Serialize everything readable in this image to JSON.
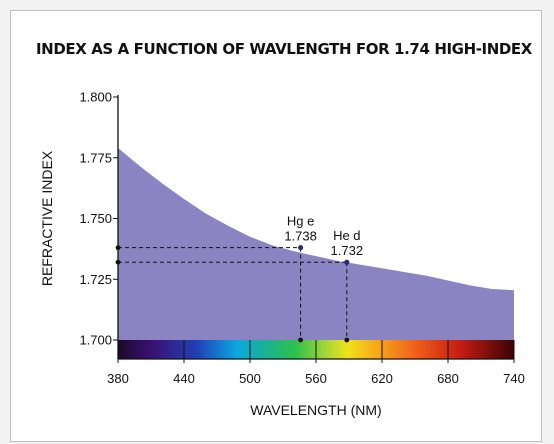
{
  "chart_data": {
    "type": "area",
    "title": "INDEX AS A FUNCTION OF WAVLENGTH FOR 1.74 HIGH-INDEX",
    "xlabel": "WAVELENGTH (NM)",
    "ylabel": "REFRACTIVE INDEX",
    "xlim": [
      380,
      740
    ],
    "ylim": [
      1.7,
      1.8
    ],
    "x_ticks": [
      "380",
      "440",
      "500",
      "560",
      "620",
      "680",
      "740"
    ],
    "y_ticks": [
      "1.700",
      "1.725",
      "1.750",
      "1.775",
      "1.800"
    ],
    "series": [
      {
        "x": [
          380,
          400,
          420,
          440,
          460,
          480,
          500,
          520,
          540,
          560,
          580,
          600,
          620,
          640,
          660,
          680,
          700,
          720,
          740
        ],
        "values": [
          1.779,
          1.7715,
          1.7645,
          1.758,
          1.752,
          1.747,
          1.7425,
          1.739,
          1.7365,
          1.7345,
          1.7325,
          1.731,
          1.7295,
          1.728,
          1.7265,
          1.7245,
          1.7225,
          1.721,
          1.7205
        ]
      }
    ],
    "annotations": [
      {
        "name": "Hg e",
        "value_label": "1.738",
        "x": 546,
        "y": 1.738
      },
      {
        "name": "He d",
        "value_label": "1.732",
        "x": 588,
        "y": 1.732
      }
    ],
    "area_color": "#8a84c2",
    "spectrum_bar": true,
    "grid": false,
    "legend": "none"
  }
}
